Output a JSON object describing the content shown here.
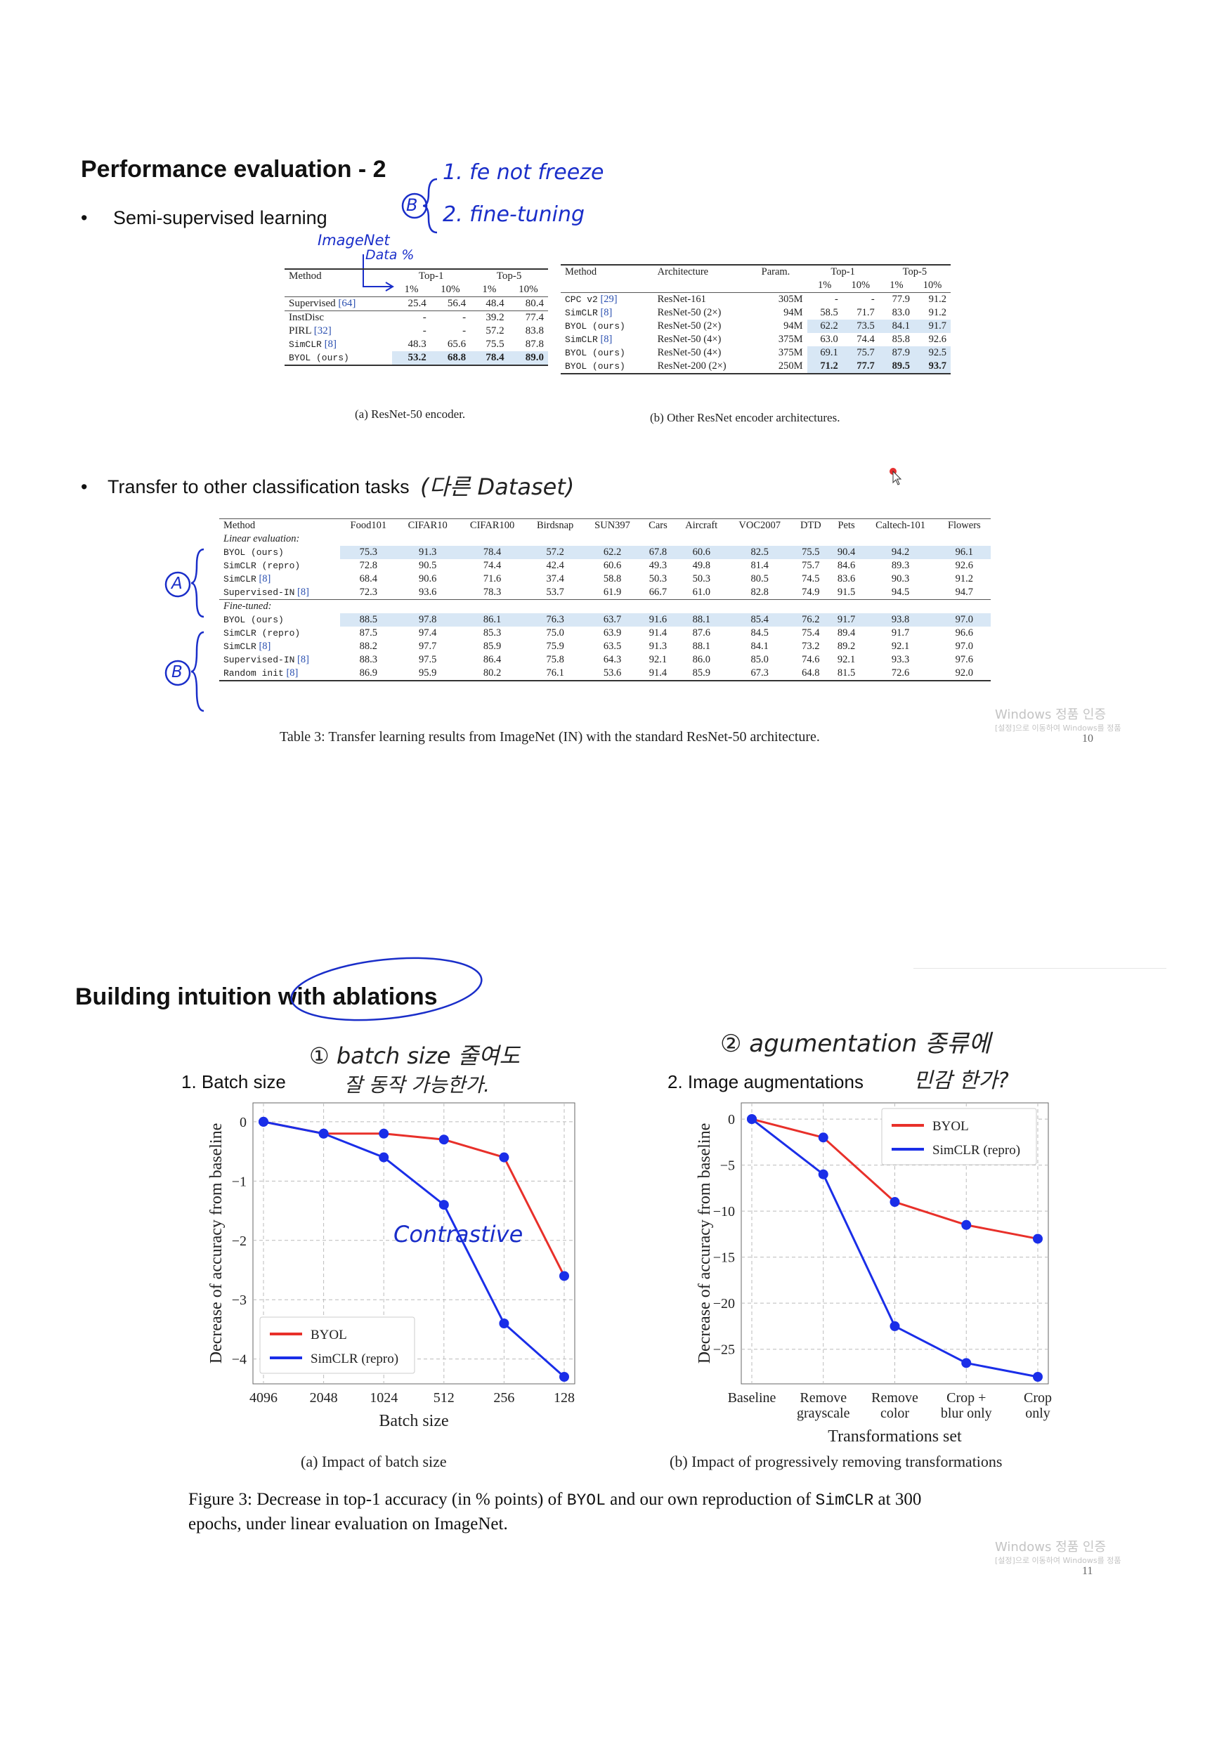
{
  "slide1": {
    "title": "Performance evaluation - 2",
    "bullet1": "Semi-supervised learning",
    "bullet2": "Transfer to other classification tasks",
    "annotations": {
      "circle_b": "B",
      "line1": "1. fe not freeze",
      "line2": "2. fine-tuning",
      "imagenet": "ImageNet",
      "data_pct": "Data %",
      "korean_dataset": "(다른 Dataset)",
      "circle_a_side": "A",
      "circle_b_side": "B"
    },
    "table_a": {
      "headers": {
        "method": "Method",
        "top1": "Top-1",
        "top5": "Top-5",
        "p1": "1%",
        "p10": "10%"
      },
      "group1": [
        {
          "method": "Supervised",
          "ref": "[64]",
          "v": [
            "25.4",
            "56.4",
            "48.4",
            "80.4"
          ]
        }
      ],
      "group2": [
        {
          "method": "InstDisc",
          "ref": "",
          "v": [
            "-",
            "-",
            "39.2",
            "77.4"
          ]
        },
        {
          "method": "PIRL",
          "ref": "[32]",
          "v": [
            "-",
            "-",
            "57.2",
            "83.8"
          ]
        },
        {
          "method": "SimCLR",
          "ref": "[8]",
          "v": [
            "48.3",
            "65.6",
            "75.5",
            "87.8"
          ]
        },
        {
          "method": "BYOL (ours)",
          "ref": "",
          "v": [
            "53.2",
            "68.8",
            "78.4",
            "89.0"
          ]
        }
      ],
      "caption": "(a) ResNet-50 encoder."
    },
    "table_b": {
      "headers": {
        "method": "Method",
        "arch": "Architecture",
        "param": "Param.",
        "top1": "Top-1",
        "top5": "Top-5",
        "p1": "1%",
        "p10": "10%"
      },
      "rows": [
        {
          "method": "CPC v2",
          "ref": "[29]",
          "arch": "ResNet-161",
          "param": "305M",
          "v": [
            "-",
            "-",
            "77.9",
            "91.2"
          ]
        },
        {
          "method": "SimCLR",
          "ref": "[8]",
          "arch": "ResNet-50 (2×)",
          "param": "94M",
          "v": [
            "58.5",
            "71.7",
            "83.0",
            "91.2"
          ]
        },
        {
          "method": "BYOL (ours)",
          "ref": "",
          "arch": "ResNet-50 (2×)",
          "param": "94M",
          "v": [
            "62.2",
            "73.5",
            "84.1",
            "91.7"
          ]
        },
        {
          "method": "SimCLR",
          "ref": "[8]",
          "arch": "ResNet-50 (4×)",
          "param": "375M",
          "v": [
            "63.0",
            "74.4",
            "85.8",
            "92.6"
          ]
        },
        {
          "method": "BYOL (ours)",
          "ref": "",
          "arch": "ResNet-50 (4×)",
          "param": "375M",
          "v": [
            "69.1",
            "75.7",
            "87.9",
            "92.5"
          ]
        },
        {
          "method": "BYOL (ours)",
          "ref": "",
          "arch": "ResNet-200 (2×)",
          "param": "250M",
          "v": [
            "71.2",
            "77.7",
            "89.5",
            "93.7"
          ]
        }
      ],
      "caption": "(b) Other ResNet encoder architectures."
    },
    "table3": {
      "columns": [
        "Method",
        "Food101",
        "CIFAR10",
        "CIFAR100",
        "Birdsnap",
        "SUN397",
        "Cars",
        "Aircraft",
        "VOC2007",
        "DTD",
        "Pets",
        "Caltech-101",
        "Flowers"
      ],
      "linear_label": "Linear evaluation:",
      "fine_label": "Fine-tuned:",
      "linear": [
        {
          "method": "BYOL (ours)",
          "ref": "",
          "v": [
            "75.3",
            "91.3",
            "78.4",
            "57.2",
            "62.2",
            "67.8",
            "60.6",
            "82.5",
            "75.5",
            "90.4",
            "94.2",
            "96.1"
          ]
        },
        {
          "method": "SimCLR (repro)",
          "ref": "",
          "v": [
            "72.8",
            "90.5",
            "74.4",
            "42.4",
            "60.6",
            "49.3",
            "49.8",
            "81.4",
            "75.7",
            "84.6",
            "89.3",
            "92.6"
          ]
        },
        {
          "method": "SimCLR",
          "ref": "[8]",
          "v": [
            "68.4",
            "90.6",
            "71.6",
            "37.4",
            "58.8",
            "50.3",
            "50.3",
            "80.5",
            "74.5",
            "83.6",
            "90.3",
            "91.2"
          ]
        },
        {
          "method": "Supervised-IN",
          "ref": "[8]",
          "v": [
            "72.3",
            "93.6",
            "78.3",
            "53.7",
            "61.9",
            "66.7",
            "61.0",
            "82.8",
            "74.9",
            "91.5",
            "94.5",
            "94.7"
          ]
        }
      ],
      "fine": [
        {
          "method": "BYOL (ours)",
          "ref": "",
          "v": [
            "88.5",
            "97.8",
            "86.1",
            "76.3",
            "63.7",
            "91.6",
            "88.1",
            "85.4",
            "76.2",
            "91.7",
            "93.8",
            "97.0"
          ]
        },
        {
          "method": "SimCLR (repro)",
          "ref": "",
          "v": [
            "87.5",
            "97.4",
            "85.3",
            "75.0",
            "63.9",
            "91.4",
            "87.6",
            "84.5",
            "75.4",
            "89.4",
            "91.7",
            "96.6"
          ]
        },
        {
          "method": "SimCLR",
          "ref": "[8]",
          "v": [
            "88.2",
            "97.7",
            "85.9",
            "75.9",
            "63.5",
            "91.3",
            "88.1",
            "84.1",
            "73.2",
            "89.2",
            "92.1",
            "97.0"
          ]
        },
        {
          "method": "Supervised-IN",
          "ref": "[8]",
          "v": [
            "88.3",
            "97.5",
            "86.4",
            "75.8",
            "64.3",
            "92.1",
            "86.0",
            "85.0",
            "74.6",
            "92.1",
            "93.3",
            "97.6"
          ]
        },
        {
          "method": "Random init",
          "ref": "[8]",
          "v": [
            "86.9",
            "95.9",
            "80.2",
            "76.1",
            "53.6",
            "91.4",
            "85.9",
            "67.3",
            "64.8",
            "81.5",
            "72.6",
            "92.0"
          ]
        }
      ],
      "caption": "Table 3: Transfer learning results from ImageNet (IN) with the standard ResNet-50 architecture."
    },
    "watermark": {
      "line1": "Windows 정품 인증",
      "line2": "[설정]으로 이동하여 Windows를 정품",
      "page": "10"
    }
  },
  "slide2": {
    "title": "Building intuition with ablations",
    "label1": "1. Batch size",
    "label2": "2. Image augmentations",
    "annotations": {
      "batch_line1": "① batch size 줄여도",
      "batch_line2": "잘 동작 가능한가.",
      "aug_line1": "② agumentation 종류에",
      "aug_line2": "민감 한가?",
      "contrastive": "Contrastive"
    },
    "caption_a": "(a) Impact of batch size",
    "caption_b": "(b) Impact of progressively removing transformations",
    "figure_caption_1": "Figure 3: Decrease in top-1 accuracy (in % points) of",
    "figure_caption_byol": "BYOL",
    "figure_caption_2": "and our own reproduction of",
    "figure_caption_simclr": "SimCLR",
    "figure_caption_3": "at 300",
    "figure_caption_4": "epochs, under linear evaluation on ImageNet.",
    "watermark": {
      "line1": "Windows 정품 인증",
      "line2": "[설정]으로 이동하여 Windows를 정품",
      "page": "11"
    }
  },
  "chart_data": [
    {
      "type": "line",
      "x": [
        "4096",
        "2048",
        "1024",
        "512",
        "256",
        "128"
      ],
      "xlabel": "Batch size",
      "ylabel": "Decrease of accuracy from baseline",
      "ylim": [
        -4.3,
        0.2
      ],
      "yticks": [
        "0",
        "−1",
        "−2",
        "−3",
        "−4"
      ],
      "yticks_values": [
        0,
        -1,
        -2,
        -3,
        -4
      ],
      "grid": true,
      "legend": "bottom-left",
      "series": [
        {
          "name": "BYOL",
          "color": "#e8302a",
          "values": [
            0,
            -0.2,
            -0.2,
            -0.3,
            -0.6,
            -2.6
          ]
        },
        {
          "name": "SimCLR (repro)",
          "color": "#1a2ee8",
          "values": [
            0,
            -0.2,
            -0.6,
            -1.4,
            -3.4,
            -4.3
          ]
        }
      ]
    },
    {
      "type": "line",
      "x": [
        "Baseline",
        "Remove grayscale",
        "Remove color",
        "Crop + blur only",
        "Crop only"
      ],
      "x_lines": [
        [
          "Baseline"
        ],
        [
          "Remove",
          "grayscale"
        ],
        [
          "Remove",
          "color"
        ],
        [
          "Crop +",
          "blur only"
        ],
        [
          "Crop",
          "only"
        ]
      ],
      "xlabel": "Transformations set",
      "ylabel": "Decrease of accuracy from baseline",
      "ylim": [
        -28,
        1
      ],
      "yticks": [
        "0",
        "−5",
        "−10",
        "−15",
        "−20",
        "−25"
      ],
      "yticks_values": [
        0,
        -5,
        -10,
        -15,
        -20,
        -25
      ],
      "grid": true,
      "legend": "top-right",
      "series": [
        {
          "name": "BYOL",
          "color": "#e8302a",
          "values": [
            0,
            -2,
            -9,
            -11.5,
            -13
          ]
        },
        {
          "name": "SimCLR (repro)",
          "color": "#1a2ee8",
          "values": [
            0,
            -6,
            -22.5,
            -26.5,
            -28
          ]
        }
      ]
    }
  ]
}
